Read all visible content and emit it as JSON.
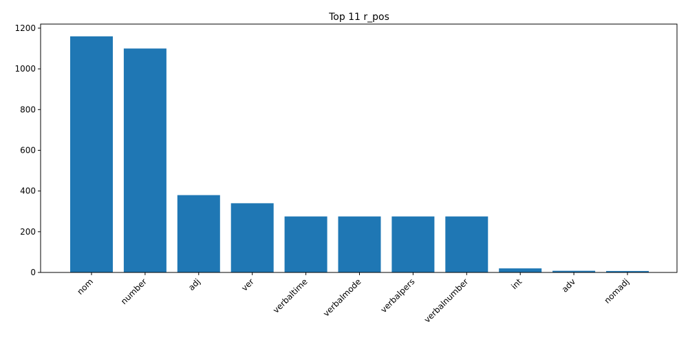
{
  "chart_data": {
    "type": "bar",
    "title": "Top 11 r_pos",
    "xlabel": "",
    "ylabel": "",
    "categories": [
      "nom",
      "number",
      "adj",
      "ver",
      "verbaltime",
      "verbalmode",
      "verbalpers",
      "verbalnumber",
      "int",
      "adv",
      "nomadj"
    ],
    "values": [
      1160,
      1100,
      380,
      340,
      275,
      275,
      275,
      275,
      20,
      8,
      7
    ],
    "ylim": [
      0,
      1220
    ],
    "yticks": [
      0,
      200,
      400,
      600,
      800,
      1000,
      1200
    ],
    "grid": false,
    "legend": "none",
    "bar_color": "#1f77b4"
  }
}
